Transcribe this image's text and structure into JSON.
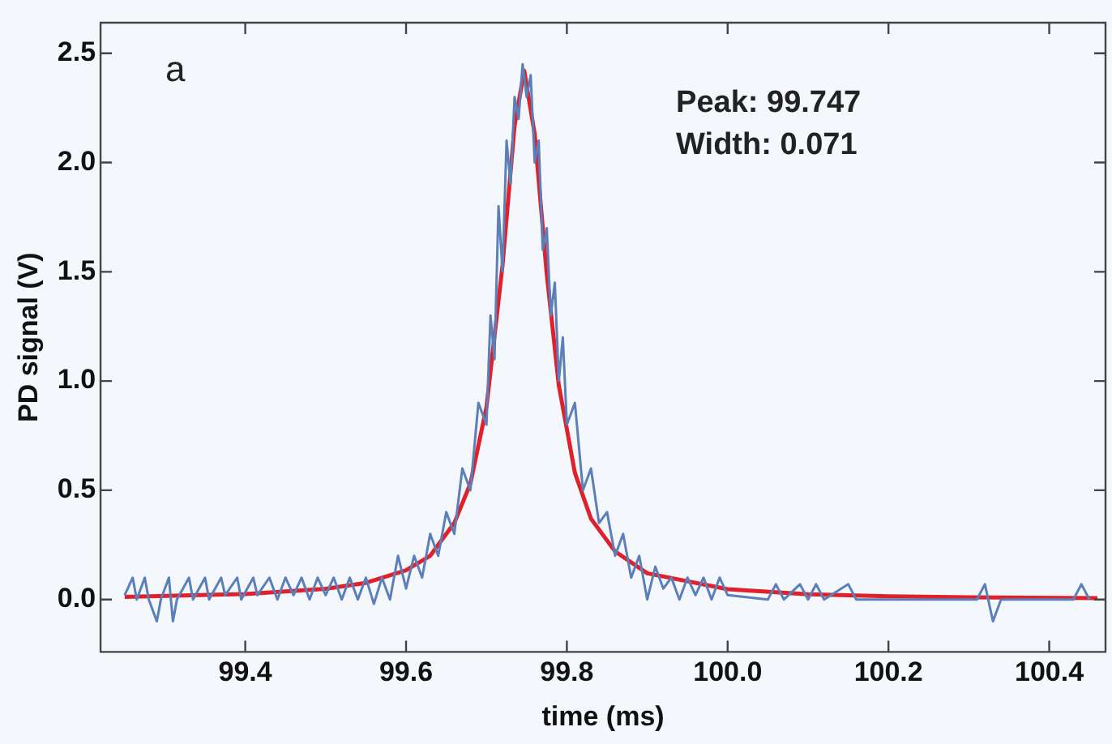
{
  "chart_data": {
    "type": "line",
    "xlabel": "time (ms)",
    "ylabel": "PD signal (V)",
    "annotations": [
      "a",
      "Peak: 99.747",
      "Width: 0.071"
    ],
    "xlim": [
      99.22,
      100.47
    ],
    "xticks": [
      99.4,
      99.6,
      99.8,
      {
        "value": 100,
        "label": "100.0"
      },
      100.2,
      100.4
    ],
    "ylim": [
      -0.24,
      2.64
    ],
    "yticks": [
      {
        "value": 0,
        "label": "0.0"
      },
      0.5,
      {
        "value": 1,
        "label": "1.0"
      },
      1.5,
      {
        "value": 2,
        "label": "2.0"
      },
      2.5
    ],
    "grid": false,
    "legend": false,
    "marker": "none",
    "line_style": "solid",
    "series": [
      {
        "color": "#5b7fb8",
        "x": [
          99.25,
          99.26,
          99.265,
          99.275,
          99.28,
          99.29,
          99.295,
          99.305,
          99.31,
          99.315,
          99.33,
          99.335,
          99.35,
          99.355,
          99.37,
          99.375,
          99.39,
          99.395,
          99.41,
          99.415,
          99.43,
          99.44,
          99.45,
          99.46,
          99.47,
          99.48,
          99.49,
          99.5,
          99.51,
          99.52,
          99.53,
          99.54,
          99.55,
          99.56,
          99.57,
          99.58,
          99.59,
          99.6,
          99.61,
          99.62,
          99.63,
          99.64,
          99.65,
          99.66,
          99.67,
          99.68,
          99.69,
          99.7,
          99.705,
          99.71,
          99.715,
          99.72,
          99.725,
          99.73,
          99.735,
          99.74,
          99.745,
          99.75,
          99.755,
          99.76,
          99.765,
          99.77,
          99.775,
          99.78,
          99.785,
          99.79,
          99.795,
          99.8,
          99.81,
          99.82,
          99.83,
          99.84,
          99.85,
          99.86,
          99.87,
          99.88,
          99.89,
          99.9,
          99.91,
          99.92,
          99.93,
          99.94,
          99.95,
          99.96,
          99.97,
          99.98,
          99.99,
          100.0,
          100.05,
          100.06,
          100.07,
          100.09,
          100.1,
          100.11,
          100.12,
          100.15,
          100.16,
          100.31,
          100.32,
          100.33,
          100.34,
          100.43,
          100.44,
          100.45
        ],
        "values": [
          0.02,
          0.1,
          0.0,
          0.1,
          0.0,
          -0.1,
          0.0,
          0.1,
          -0.1,
          0.0,
          0.1,
          0.0,
          0.1,
          0.0,
          0.1,
          0.02,
          0.1,
          0.0,
          0.1,
          0.02,
          0.1,
          0.0,
          0.1,
          0.02,
          0.1,
          0.0,
          0.1,
          0.02,
          0.1,
          0.0,
          0.1,
          0.0,
          0.1,
          -0.02,
          0.1,
          0.0,
          0.2,
          0.05,
          0.2,
          0.1,
          0.3,
          0.2,
          0.4,
          0.3,
          0.6,
          0.5,
          0.9,
          0.8,
          1.3,
          1.1,
          1.8,
          1.5,
          2.1,
          1.9,
          2.3,
          2.2,
          2.45,
          2.3,
          2.4,
          2.0,
          2.1,
          1.6,
          1.7,
          1.3,
          1.45,
          1.0,
          1.2,
          0.8,
          0.9,
          0.5,
          0.6,
          0.35,
          0.4,
          0.2,
          0.3,
          0.1,
          0.2,
          0.0,
          0.15,
          0.05,
          0.1,
          0.0,
          0.1,
          0.02,
          0.1,
          0.0,
          0.1,
          0.02,
          0.0,
          0.07,
          0.0,
          0.07,
          0.0,
          0.07,
          0.0,
          0.07,
          0.0,
          0.0,
          0.07,
          -0.1,
          0.0,
          0.0,
          0.07,
          0.0
        ]
      },
      {
        "color": "#e0202a",
        "x": [
          99.25,
          99.4,
          99.5,
          99.55,
          99.6,
          99.63,
          99.66,
          99.68,
          99.7,
          99.72,
          99.735,
          99.747,
          99.76,
          99.775,
          99.79,
          99.81,
          99.83,
          99.86,
          99.9,
          100.0,
          100.1,
          100.2,
          100.3,
          100.46
        ],
        "values": [
          0.012,
          0.025,
          0.049,
          0.076,
          0.134,
          0.2,
          0.35,
          0.53,
          0.88,
          1.53,
          2.17,
          2.42,
          2.13,
          1.49,
          0.98,
          0.58,
          0.37,
          0.22,
          0.12,
          0.047,
          0.024,
          0.015,
          0.01,
          0.006
        ]
      }
    ]
  }
}
